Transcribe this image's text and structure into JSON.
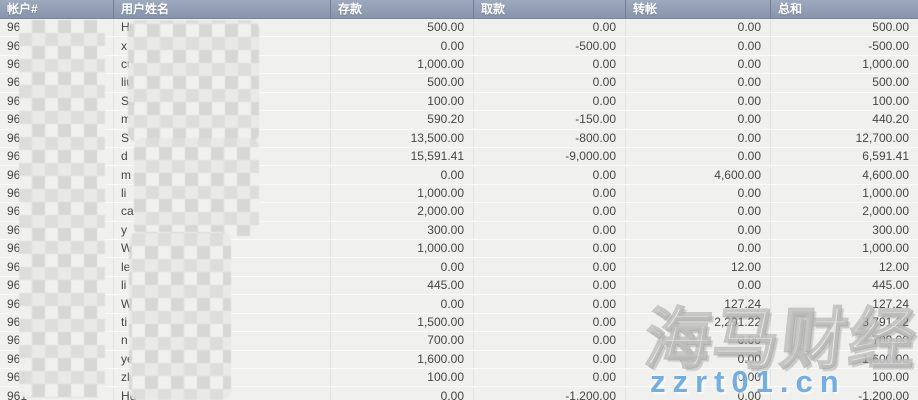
{
  "table": {
    "columns": [
      {
        "label": "帐户#"
      },
      {
        "label": "用户姓名"
      },
      {
        "label": "存款"
      },
      {
        "label": "取款"
      },
      {
        "label": "转帐"
      },
      {
        "label": "总和"
      }
    ],
    "rows": [
      {
        "account": "96",
        "name": "Hu",
        "deposit": "500.00",
        "withdraw": "0.00",
        "transfer": "0.00",
        "total": "500.00"
      },
      {
        "account": "96",
        "name": "x",
        "deposit": "0.00",
        "withdraw": "-500.00",
        "transfer": "0.00",
        "total": "-500.00"
      },
      {
        "account": "96",
        "name": "cu",
        "deposit": "1,000.00",
        "withdraw": "0.00",
        "transfer": "0.00",
        "total": "1,000.00"
      },
      {
        "account": "96",
        "name": "liu",
        "deposit": "500.00",
        "withdraw": "0.00",
        "transfer": "0.00",
        "total": "500.00"
      },
      {
        "account": "96",
        "name": "Su",
        "deposit": "100.00",
        "withdraw": "0.00",
        "transfer": "0.00",
        "total": "100.00"
      },
      {
        "account": "96",
        "name": "m",
        "deposit": "590.20",
        "withdraw": "-150.00",
        "transfer": "0.00",
        "total": "440.20"
      },
      {
        "account": "96",
        "name": "S",
        "deposit": "13,500.00",
        "withdraw": "-800.00",
        "transfer": "0.00",
        "total": "12,700.00"
      },
      {
        "account": "96",
        "name": "d",
        "deposit": "15,591.41",
        "withdraw": "-9,000.00",
        "transfer": "0.00",
        "total": "6,591.41"
      },
      {
        "account": "96",
        "name": "m",
        "deposit": "0.00",
        "withdraw": "0.00",
        "transfer": "4,600.00",
        "total": "4,600.00"
      },
      {
        "account": "96",
        "name": "li",
        "deposit": "1,000.00",
        "withdraw": "0.00",
        "transfer": "0.00",
        "total": "1,000.00"
      },
      {
        "account": "96",
        "name": "ca",
        "deposit": "2,000.00",
        "withdraw": "0.00",
        "transfer": "0.00",
        "total": "2,000.00"
      },
      {
        "account": "96",
        "name": "y",
        "deposit": "300.00",
        "withdraw": "0.00",
        "transfer": "0.00",
        "total": "300.00"
      },
      {
        "account": "96",
        "name": "W",
        "deposit": "1,000.00",
        "withdraw": "0.00",
        "transfer": "0.00",
        "total": "1,000.00"
      },
      {
        "account": "96",
        "name": "le",
        "deposit": "0.00",
        "withdraw": "0.00",
        "transfer": "12.00",
        "total": "12.00"
      },
      {
        "account": "96",
        "name": "li",
        "deposit": "445.00",
        "withdraw": "0.00",
        "transfer": "0.00",
        "total": "445.00"
      },
      {
        "account": "96",
        "name": "W",
        "deposit": "0.00",
        "withdraw": "0.00",
        "transfer": "127.24",
        "total": "127.24"
      },
      {
        "account": "96",
        "name": "ti",
        "deposit": "1,500.00",
        "withdraw": "0.00",
        "transfer": "2,291.22",
        "total": "3,791.22"
      },
      {
        "account": "96",
        "name": "n",
        "deposit": "700.00",
        "withdraw": "0.00",
        "transfer": "0.00",
        "total": "700.00"
      },
      {
        "account": "961",
        "name": "ye",
        "deposit": "1,600.00",
        "withdraw": "0.00",
        "transfer": "0.00",
        "total": "1,600.00"
      },
      {
        "account": "961",
        "name": "zh",
        "deposit": "100.00",
        "withdraw": "0.00",
        "transfer": "0.00",
        "total": "100.00"
      },
      {
        "account": "961",
        "name": "Hu",
        "deposit": "0.00",
        "withdraw": "-1,200.00",
        "transfer": "0.00",
        "total": "-1,200.00"
      }
    ]
  },
  "watermark": {
    "brand": "海马财经",
    "site": "zzrt01.cn"
  },
  "colors": {
    "header_bg": "#8894aa",
    "header_border": "#6f7f99",
    "row_bg": "#f0f0ee",
    "cell_text": "#454543",
    "watermark_blue": "#589dd6"
  }
}
